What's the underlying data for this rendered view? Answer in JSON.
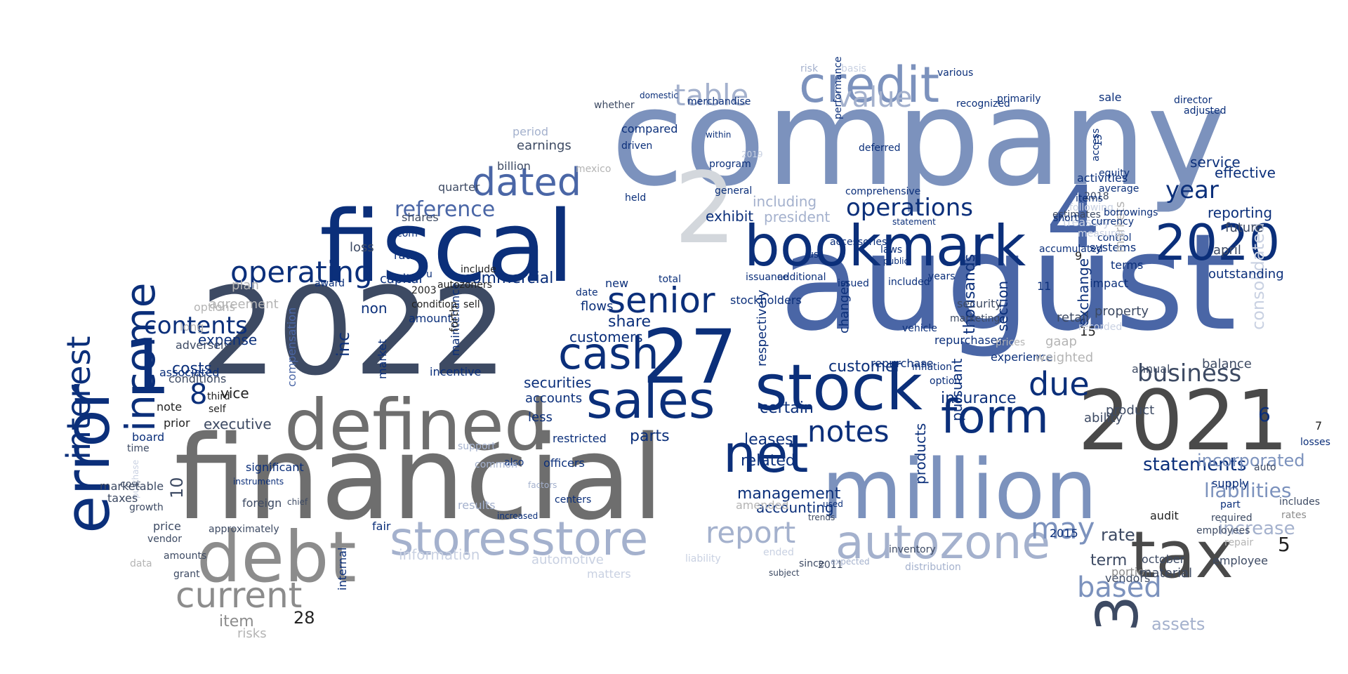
{
  "palette": {
    "navy": "#0b2f7a",
    "blue": "#4a66a6",
    "periwinkle": "#7c92bd",
    "lightblue": "#a4b1cd",
    "paleblue": "#c9d1e2",
    "slate": "#3d4a63",
    "charcoal": "#4a4a4a",
    "dimgray": "#6e6e6e",
    "gray": "#8c8c8c",
    "lightgray": "#b4b4b4",
    "palegray": "#d3d7dc",
    "black": "#222222"
  },
  "words": [
    {
      "text": "company",
      "color": "periwinkle"
    },
    {
      "text": "august",
      "color": "blue"
    },
    {
      "text": "2022",
      "color": "slate"
    },
    {
      "text": "financial",
      "color": "dimgray"
    },
    {
      "text": "fiscal",
      "color": "navy"
    },
    {
      "text": "2",
      "color": "palegray"
    },
    {
      "text": "2021",
      "color": "charcoal"
    },
    {
      "text": "million",
      "color": "periwinkle"
    },
    {
      "text": "4",
      "color": "blue"
    },
    {
      "text": "tax",
      "color": "charcoal"
    },
    {
      "text": "debt",
      "color": "gray"
    },
    {
      "text": "defined",
      "color": "dimgray"
    },
    {
      "text": "stock",
      "color": "navy"
    },
    {
      "text": "error",
      "color": "navy"
    },
    {
      "text": "bookmark",
      "color": "navy"
    },
    {
      "text": "27",
      "color": "navy"
    },
    {
      "text": "storesstore",
      "color": "lightblue"
    },
    {
      "text": "autozone",
      "color": "lightblue"
    },
    {
      "text": "credit",
      "color": "periwinkle"
    },
    {
      "text": "3",
      "color": "slate"
    },
    {
      "text": "sales",
      "color": "navy"
    },
    {
      "text": "net",
      "color": "navy"
    },
    {
      "text": "form",
      "color": "navy"
    },
    {
      "text": "cash",
      "color": "navy"
    },
    {
      "text": "2020",
      "color": "navy"
    },
    {
      "text": "1",
      "color": "navy"
    },
    {
      "text": "income",
      "color": "navy"
    },
    {
      "text": "current",
      "color": "gray"
    },
    {
      "text": "interest",
      "color": "navy"
    },
    {
      "text": "dated",
      "color": "blue"
    },
    {
      "text": "table",
      "color": "lightblue"
    },
    {
      "text": "value",
      "color": "lightblue"
    },
    {
      "text": "due",
      "color": "navy"
    },
    {
      "text": "notes",
      "color": "navy"
    },
    {
      "text": "senior",
      "color": "navy"
    },
    {
      "text": "operating",
      "color": "navy"
    },
    {
      "text": "operations",
      "color": "navy"
    },
    {
      "text": "report",
      "color": "lightblue"
    },
    {
      "text": "may",
      "color": "periwinkle"
    },
    {
      "text": "based",
      "color": "periwinkle"
    },
    {
      "text": "business",
      "color": "slate"
    },
    {
      "text": "year",
      "color": "navy"
    },
    {
      "text": "8",
      "color": "navy"
    },
    {
      "text": "contents",
      "color": "navy"
    },
    {
      "text": "reference",
      "color": "blue"
    },
    {
      "text": "liabilities",
      "color": "periwinkle"
    },
    {
      "text": "6",
      "color": "navy"
    },
    {
      "text": "statements",
      "color": "navy"
    },
    {
      "text": "incorporated",
      "color": "periwinkle"
    },
    {
      "text": "consolidated",
      "color": "paleblue"
    },
    {
      "text": "management",
      "color": "navy"
    },
    {
      "text": "related",
      "color": "navy"
    },
    {
      "text": "information",
      "color": "paleblue"
    },
    {
      "text": "automotive",
      "color": "paleblue"
    },
    {
      "text": "increase",
      "color": "lightblue"
    },
    {
      "text": "rate",
      "color": "slate"
    },
    {
      "text": "term",
      "color": "slate"
    },
    {
      "text": "5",
      "color": "black"
    },
    {
      "text": "assets",
      "color": "lightblue"
    },
    {
      "text": "item",
      "color": "gray"
    },
    {
      "text": "28",
      "color": "black"
    },
    {
      "text": "risks",
      "color": "lightgray"
    },
    {
      "text": "costs",
      "color": "navy"
    },
    {
      "text": "loss",
      "color": "slate"
    },
    {
      "text": "expense",
      "color": "navy"
    },
    {
      "text": "executive",
      "color": "slate"
    },
    {
      "text": "10",
      "color": "slate"
    },
    {
      "text": "inc",
      "color": "navy"
    },
    {
      "text": "share",
      "color": "navy"
    },
    {
      "text": "non",
      "color": "navy"
    },
    {
      "text": "commercial",
      "color": "navy"
    },
    {
      "text": "capital",
      "color": "navy"
    },
    {
      "text": "exhibit",
      "color": "navy"
    },
    {
      "text": "including",
      "color": "lightblue"
    },
    {
      "text": "president",
      "color": "lightblue"
    },
    {
      "text": "securities",
      "color": "navy"
    },
    {
      "text": "customers",
      "color": "navy"
    },
    {
      "text": "parts",
      "color": "navy"
    },
    {
      "text": "accounting",
      "color": "navy"
    },
    {
      "text": "certain",
      "color": "navy"
    },
    {
      "text": "leases",
      "color": "navy"
    },
    {
      "text": "customer",
      "color": "navy"
    },
    {
      "text": "insurance",
      "color": "navy"
    },
    {
      "text": "thousands",
      "color": "navy"
    },
    {
      "text": "section",
      "color": "navy"
    },
    {
      "text": "2015",
      "color": "navy"
    },
    {
      "text": "pursuant",
      "color": "navy"
    },
    {
      "text": "products",
      "color": "navy"
    },
    {
      "text": "service",
      "color": "navy"
    },
    {
      "text": "effective",
      "color": "navy"
    },
    {
      "text": "reporting",
      "color": "navy"
    },
    {
      "text": "future",
      "color": "slate"
    },
    {
      "text": "april",
      "color": "slate"
    },
    {
      "text": "balance",
      "color": "slate"
    },
    {
      "text": "exchange",
      "color": "navy"
    },
    {
      "text": "annual",
      "color": "slate"
    },
    {
      "text": "ability",
      "color": "slate"
    },
    {
      "text": "product",
      "color": "slate"
    },
    {
      "text": "vendors",
      "color": "slate"
    },
    {
      "text": "portion",
      "color": "gray"
    },
    {
      "text": "october",
      "color": "slate"
    },
    {
      "text": "employee",
      "color": "slate"
    },
    {
      "text": "material",
      "color": "slate"
    },
    {
      "text": "repair",
      "color": "lightgray"
    },
    {
      "text": "required",
      "color": "slate"
    },
    {
      "text": "auto",
      "color": "slate"
    },
    {
      "text": "7",
      "color": "black"
    },
    {
      "text": "losses",
      "color": "navy"
    },
    {
      "text": "includes",
      "color": "slate"
    },
    {
      "text": "rates",
      "color": "gray"
    },
    {
      "text": "employees",
      "color": "slate"
    },
    {
      "text": "supply",
      "color": "navy"
    },
    {
      "text": "part",
      "color": "navy"
    },
    {
      "text": "audit",
      "color": "black"
    },
    {
      "text": "outstanding",
      "color": "navy"
    },
    {
      "text": "terms",
      "color": "navy"
    },
    {
      "text": "impact",
      "color": "navy"
    },
    {
      "text": "systems",
      "color": "navy"
    },
    {
      "text": "control",
      "color": "navy"
    },
    {
      "text": "sale",
      "color": "navy"
    },
    {
      "text": "director",
      "color": "navy"
    },
    {
      "text": "adjusted",
      "color": "navy"
    },
    {
      "text": "issuance",
      "color": "navy"
    },
    {
      "text": "additional",
      "color": "navy"
    },
    {
      "text": "issued",
      "color": "navy"
    },
    {
      "text": "included",
      "color": "navy"
    },
    {
      "text": "years",
      "color": "navy"
    },
    {
      "text": "changes",
      "color": "navy"
    },
    {
      "text": "respectively",
      "color": "navy"
    },
    {
      "text": "stockholders",
      "color": "navy"
    },
    {
      "text": "total",
      "color": "navy"
    },
    {
      "text": "new",
      "color": "navy"
    },
    {
      "text": "flows",
      "color": "navy"
    },
    {
      "text": "date",
      "color": "navy"
    },
    {
      "text": "amount",
      "color": "navy"
    },
    {
      "text": "ratio",
      "color": "navy"
    },
    {
      "text": "shares",
      "color": "slate"
    },
    {
      "text": "quarter",
      "color": "slate"
    },
    {
      "text": "billion",
      "color": "slate"
    },
    {
      "text": "earnings",
      "color": "slate"
    },
    {
      "text": "period",
      "color": "lightblue"
    },
    {
      "text": "plan",
      "color": "lightgray"
    },
    {
      "text": "agreement",
      "color": "lightgray"
    },
    {
      "text": "options",
      "color": "lightgray"
    },
    {
      "text": "long",
      "color": "lightgray"
    },
    {
      "text": "adversely",
      "color": "slate"
    },
    {
      "text": "associated",
      "color": "navy"
    },
    {
      "text": "conditions",
      "color": "slate"
    },
    {
      "text": "vice",
      "color": "black"
    },
    {
      "text": "third",
      "color": "black"
    },
    {
      "text": "self",
      "color": "black"
    },
    {
      "text": "note",
      "color": "black"
    },
    {
      "text": "prior",
      "color": "black"
    },
    {
      "text": "board",
      "color": "navy"
    },
    {
      "text": "time",
      "color": "slate"
    },
    {
      "text": "cost",
      "color": "slate"
    },
    {
      "text": "growth",
      "color": "slate"
    },
    {
      "text": "price",
      "color": "slate"
    },
    {
      "text": "vendor",
      "color": "slate"
    },
    {
      "text": "amounts",
      "color": "slate"
    },
    {
      "text": "grant",
      "color": "slate"
    },
    {
      "text": "purchase",
      "color": "paleblue"
    },
    {
      "text": "approximately",
      "color": "slate"
    },
    {
      "text": "marketable",
      "color": "slate"
    },
    {
      "text": "taxes",
      "color": "slate"
    },
    {
      "text": "data",
      "color": "lightgray"
    },
    {
      "text": "foreign",
      "color": "slate"
    },
    {
      "text": "chief",
      "color": "slate"
    },
    {
      "text": "significant",
      "color": "navy"
    },
    {
      "text": "instruments",
      "color": "navy"
    },
    {
      "text": "fair",
      "color": "navy"
    },
    {
      "text": "internal",
      "color": "navy"
    },
    {
      "text": "compensation",
      "color": "blue"
    },
    {
      "text": "award",
      "color": "navy"
    },
    {
      "text": "market",
      "color": "navy"
    },
    {
      "text": "incentive",
      "color": "navy"
    },
    {
      "text": "maintenance",
      "color": "navy"
    },
    {
      "text": "accounts",
      "color": "navy"
    },
    {
      "text": "less",
      "color": "navy"
    },
    {
      "text": "officers",
      "color": "navy"
    },
    {
      "text": "restricted",
      "color": "navy"
    },
    {
      "text": "centers",
      "color": "navy"
    },
    {
      "text": "also",
      "color": "navy"
    },
    {
      "text": "common",
      "color": "lightblue"
    },
    {
      "text": "support",
      "color": "lightblue"
    },
    {
      "text": "results",
      "color": "lightblue"
    },
    {
      "text": "increased",
      "color": "navy"
    },
    {
      "text": "factors",
      "color": "lightblue"
    },
    {
      "text": "matters",
      "color": "paleblue"
    },
    {
      "text": "liability",
      "color": "paleblue"
    },
    {
      "text": "amended",
      "color": "lightgray"
    },
    {
      "text": "used",
      "color": "navy"
    },
    {
      "text": "distribution",
      "color": "lightblue"
    },
    {
      "text": "inventory",
      "color": "slate"
    },
    {
      "text": "2011",
      "color": "slate"
    },
    {
      "text": "trends",
      "color": "slate"
    },
    {
      "text": "expected",
      "color": "lightblue"
    },
    {
      "text": "since",
      "color": "slate"
    },
    {
      "text": "subject",
      "color": "slate"
    },
    {
      "text": "ended",
      "color": "paleblue"
    },
    {
      "text": "risk",
      "color": "lightblue"
    },
    {
      "text": "basis",
      "color": "paleblue"
    },
    {
      "text": "merchandise",
      "color": "navy"
    },
    {
      "text": "whether",
      "color": "slate"
    },
    {
      "text": "domestic",
      "color": "navy"
    },
    {
      "text": "compared",
      "color": "navy"
    },
    {
      "text": "driven",
      "color": "navy"
    },
    {
      "text": "recognized",
      "color": "navy"
    },
    {
      "text": "various",
      "color": "navy"
    },
    {
      "text": "primarily",
      "color": "navy"
    },
    {
      "text": "mexico",
      "color": "lightgray"
    },
    {
      "text": "2019",
      "color": "paleblue"
    },
    {
      "text": "program",
      "color": "navy"
    },
    {
      "text": "within",
      "color": "navy"
    },
    {
      "text": "held",
      "color": "navy"
    },
    {
      "text": "general",
      "color": "navy"
    },
    {
      "text": "deferred",
      "color": "navy"
    },
    {
      "text": "performance",
      "color": "navy"
    },
    {
      "text": "comprehensive",
      "color": "navy"
    },
    {
      "text": "accessories",
      "color": "navy"
    },
    {
      "text": "us",
      "color": "navy"
    },
    {
      "text": "statement",
      "color": "navy"
    },
    {
      "text": "laws",
      "color": "navy"
    },
    {
      "text": "public",
      "color": "navy"
    },
    {
      "text": "equity",
      "color": "navy"
    },
    {
      "text": "access",
      "color": "navy"
    },
    {
      "text": "13",
      "color": "navy"
    },
    {
      "text": "u",
      "color": "navy"
    },
    {
      "text": "2003",
      "color": "black"
    },
    {
      "text": "forth",
      "color": "black"
    },
    {
      "text": "sell",
      "color": "black"
    },
    {
      "text": "condition",
      "color": "black"
    },
    {
      "text": "include",
      "color": "black"
    },
    {
      "text": "autozoners",
      "color": "black"
    },
    {
      "text": "com",
      "color": "navy"
    },
    {
      "text": "vehicle",
      "color": "navy"
    },
    {
      "text": "inflation",
      "color": "navy"
    },
    {
      "text": "option",
      "color": "navy"
    },
    {
      "text": "repurchase",
      "color": "navy"
    },
    {
      "text": "repurchases",
      "color": "navy"
    },
    {
      "text": "marketing",
      "color": "slate"
    },
    {
      "text": "security",
      "color": "slate"
    },
    {
      "text": "experience",
      "color": "navy"
    },
    {
      "text": "prices",
      "color": "lightgray"
    },
    {
      "text": "weighted",
      "color": "lightgray"
    },
    {
      "text": "gaap",
      "color": "lightgray"
    },
    {
      "text": "retail",
      "color": "slate"
    },
    {
      "text": "property",
      "color": "slate"
    },
    {
      "text": "15",
      "color": "black"
    },
    {
      "text": "recorded",
      "color": "paleblue"
    },
    {
      "text": "markets",
      "color": "lightgray"
    },
    {
      "text": "accumulated",
      "color": "navy"
    },
    {
      "text": "11",
      "color": "navy"
    },
    {
      "text": "9",
      "color": "black"
    },
    {
      "text": "measures",
      "color": "paleblue"
    },
    {
      "text": "treasury",
      "color": "paleblue"
    },
    {
      "text": "estimates",
      "color": "slate"
    },
    {
      "text": "following",
      "color": "paleblue"
    },
    {
      "text": "2018",
      "color": "slate"
    },
    {
      "text": "average",
      "color": "navy"
    },
    {
      "text": "activities",
      "color": "navy"
    },
    {
      "text": "short",
      "color": "navy"
    },
    {
      "text": "currency",
      "color": "navy"
    },
    {
      "text": "borrowings",
      "color": "navy"
    },
    {
      "text": "items",
      "color": "navy"
    },
    {
      "text": "24",
      "color": "black"
    },
    {
      "text": "12",
      "color": "slate"
    },
    {
      "text": "18",
      "color": "navy"
    },
    {
      "text": "change",
      "color": "navy"
    },
    {
      "text": "local",
      "color": "navy"
    },
    {
      "text": "k",
      "color": "paleblue"
    }
  ]
}
